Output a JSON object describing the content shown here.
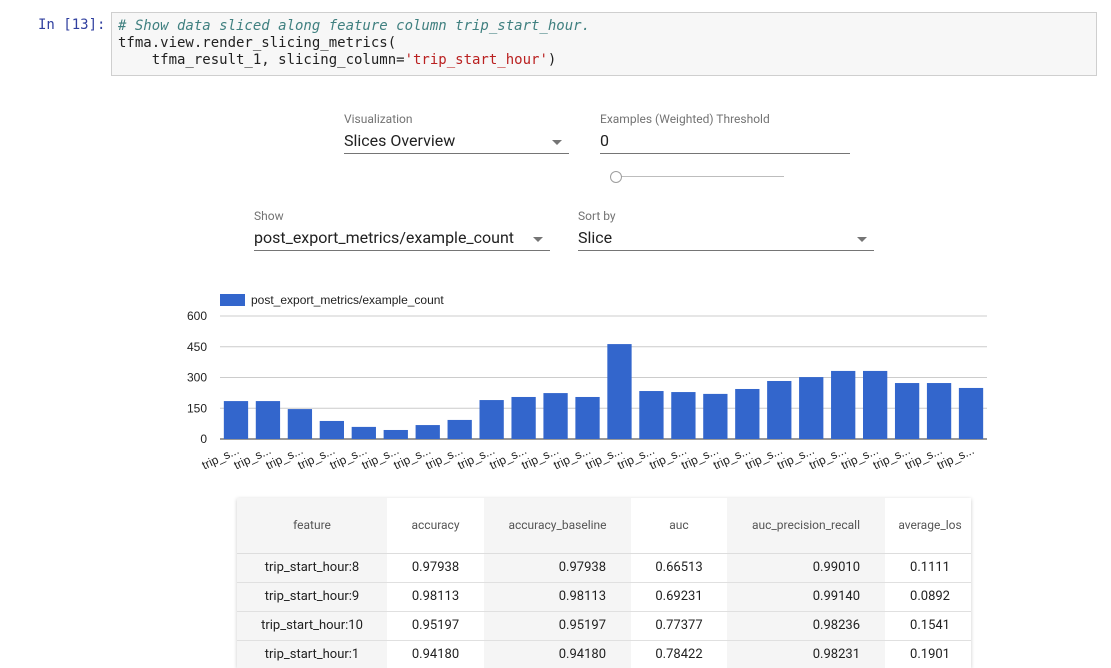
{
  "cell": {
    "prompt": "In [13]:",
    "comment": "# Show data sliced along feature column trip_start_hour.",
    "line2": "tfma.view.render_slicing_metrics(",
    "line3_code": "    tfma_result_1, slicing_column=",
    "line3_string": "'trip_start_hour'",
    "line3_end": ")"
  },
  "controls": {
    "visualization_label": "Visualization",
    "visualization_value": "Slices Overview",
    "threshold_label": "Examples (Weighted) Threshold",
    "threshold_value": "0",
    "show_label": "Show",
    "show_value": "post_export_metrics/example_count",
    "sort_label": "Sort by",
    "sort_value": "Slice"
  },
  "chart_data": {
    "type": "bar",
    "categories": [
      "trip_s...",
      "trip_s...",
      "trip_s...",
      "trip_s...",
      "trip_s...",
      "trip_s...",
      "trip_s...",
      "trip_s...",
      "trip_s...",
      "trip_s...",
      "trip_s...",
      "trip_s...",
      "trip_s...",
      "trip_s...",
      "trip_s...",
      "trip_s...",
      "trip_s...",
      "trip_s...",
      "trip_s...",
      "trip_s...",
      "trip_s...",
      "trip_s...",
      "trip_s...",
      "trip_s..."
    ],
    "series": [
      {
        "name": "post_export_metrics/example_count",
        "color": "#3366cc",
        "values": [
          185,
          185,
          146,
          88,
          59,
          44,
          68,
          93,
          190,
          205,
          224,
          205,
          463,
          234,
          229,
          220,
          244,
          283,
          302,
          332,
          332,
          273,
          273,
          249
        ]
      }
    ],
    "ylim": [
      0,
      600
    ],
    "yticks": [
      0,
      150,
      300,
      450,
      600
    ],
    "grid": true
  },
  "table": {
    "header": [
      "feature",
      "accuracy",
      "accuracy_baseline",
      "auc",
      "auc_precision_recall",
      "average_los"
    ],
    "rows": [
      [
        "trip_start_hour:8",
        "0.97938",
        "0.97938",
        "0.66513",
        "0.99010",
        "0.1111"
      ],
      [
        "trip_start_hour:9",
        "0.98113",
        "0.98113",
        "0.69231",
        "0.99140",
        "0.0892"
      ],
      [
        "trip_start_hour:10",
        "0.95197",
        "0.95197",
        "0.77377",
        "0.98236",
        "0.1541"
      ],
      [
        "trip_start_hour:1",
        "0.94180",
        "0.94180",
        "0.78422",
        "0.98231",
        "0.1901"
      ]
    ]
  }
}
